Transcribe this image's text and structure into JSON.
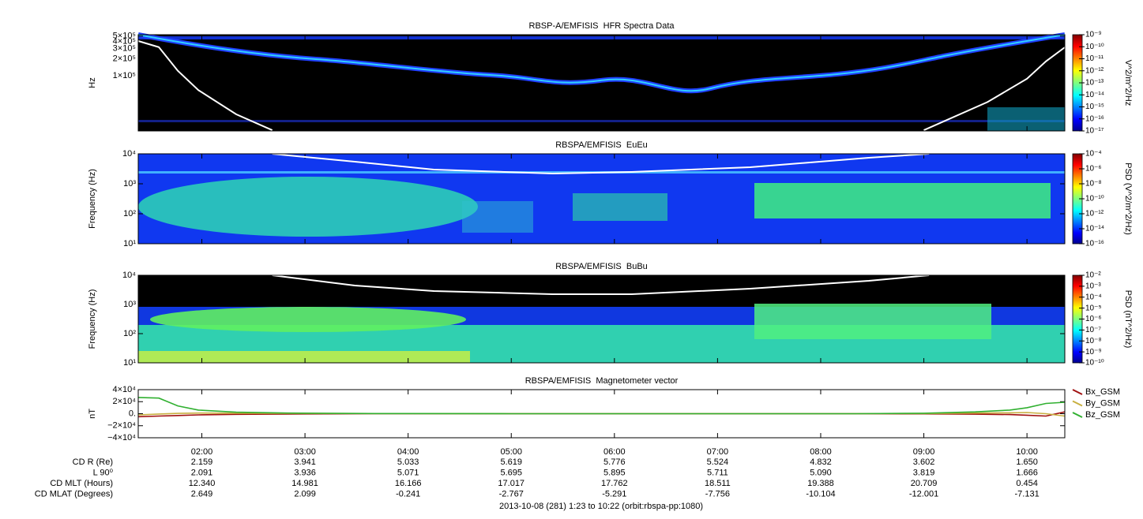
{
  "chart_data": [
    {
      "type": "spectrogram",
      "title": "RBSP-A/EMFISIS  HFR Spectra Data",
      "ylabel": "Hz",
      "yscale": "log",
      "ylim": [
        10700,
        530000
      ],
      "yticks": [
        {
          "value": 100000,
          "label": "1×10⁵"
        },
        {
          "value": 200000,
          "label": "2×10⁵"
        },
        {
          "value": 300000,
          "label": "3×10⁵"
        },
        {
          "value": 400000,
          "label": "4×10⁵"
        },
        {
          "value": 500000,
          "label": "5×10⁵"
        }
      ],
      "xlim": [
        83,
        622
      ],
      "xticks": [
        120,
        180,
        240,
        300,
        360,
        420,
        480,
        540,
        600
      ],
      "curve": {
        "color": "#ffffff",
        "x": [
          83,
          95,
          106,
          118,
          140,
          161,
          300,
          540,
          577,
          600,
          611,
          622
        ],
        "values": [
          410000,
          320000,
          123000,
          56000,
          21000,
          11000,
          null,
          11000,
          34500,
          89000,
          180000,
          318000
        ]
      },
      "colorbar": {
        "label": "V^2/m^2/Hz",
        "scale": "log",
        "lim": [
          1e-17,
          1e-09
        ],
        "ticks": [
          {
            "value": 1e-09,
            "label": "10⁻⁹"
          },
          {
            "value": 1e-10,
            "label": "10⁻¹⁰"
          },
          {
            "value": 1e-11,
            "label": "10⁻¹¹"
          },
          {
            "value": 1e-12,
            "label": "10⁻¹²"
          },
          {
            "value": 1e-13,
            "label": "10⁻¹³"
          },
          {
            "value": 1e-14,
            "label": "10⁻¹⁴"
          },
          {
            "value": 1e-15,
            "label": "10⁻¹⁵"
          },
          {
            "value": 1e-16,
            "label": "10⁻¹⁶"
          },
          {
            "value": 1e-17,
            "label": "10⁻¹⁷"
          }
        ]
      }
    },
    {
      "type": "spectrogram",
      "title": "RBSPA/EMFISIS  EuEu",
      "ylabel": "Frequency (Hz)",
      "yscale": "log",
      "ylim": [
        10,
        10000
      ],
      "yticks": [
        {
          "value": 10,
          "label": "10¹"
        },
        {
          "value": 100,
          "label": "10²"
        },
        {
          "value": 1000,
          "label": "10³"
        },
        {
          "value": 10000,
          "label": "10⁴"
        }
      ],
      "xlim": [
        83,
        622
      ],
      "xticks": [
        120,
        180,
        240,
        300,
        360,
        420,
        480,
        540,
        600
      ],
      "curve": {
        "color": "#ffffff",
        "x": [
          161,
          209,
          255,
          324,
          370,
          439,
          508,
          543
        ],
        "values": [
          10000,
          5470,
          2980,
          2200,
          2480,
          3570,
          7390,
          10000
        ]
      },
      "colorbar": {
        "label": "PSD (V^2/m^2/Hz)",
        "scale": "log",
        "lim": [
          1e-16,
          0.0001
        ],
        "ticks": [
          {
            "value": 0.0001,
            "label": "10⁻⁴"
          },
          {
            "value": 1e-06,
            "label": "10⁻⁶"
          },
          {
            "value": 1e-08,
            "label": "10⁻⁸"
          },
          {
            "value": 1e-10,
            "label": "10⁻¹⁰"
          },
          {
            "value": 1e-12,
            "label": "10⁻¹²"
          },
          {
            "value": 1e-14,
            "label": "10⁻¹⁴"
          },
          {
            "value": 1e-16,
            "label": "10⁻¹⁶"
          }
        ]
      }
    },
    {
      "type": "spectrogram",
      "title": "RBSPA/EMFISIS  BuBu",
      "ylabel": "Frequency (Hz)",
      "yscale": "log",
      "ylim": [
        10,
        10000
      ],
      "yticks": [
        {
          "value": 10,
          "label": "10¹"
        },
        {
          "value": 100,
          "label": "10²"
        },
        {
          "value": 1000,
          "label": "10³"
        },
        {
          "value": 10000,
          "label": "10⁴"
        }
      ],
      "xlim": [
        83,
        622
      ],
      "xticks": [
        120,
        180,
        240,
        300,
        360,
        420,
        480,
        540,
        600
      ],
      "curve": {
        "color": "#ffffff",
        "x": [
          161,
          209,
          255,
          324,
          370,
          439,
          508,
          543
        ],
        "values": [
          10000,
          4460,
          2880,
          2250,
          2250,
          3480,
          6460,
          10000
        ]
      },
      "colorbar": {
        "label": "PSD (nT^2/Hz)",
        "scale": "log",
        "lim": [
          1e-10,
          0.01
        ],
        "ticks": [
          {
            "value": 0.01,
            "label": "10⁻²"
          },
          {
            "value": 0.001,
            "label": "10⁻³"
          },
          {
            "value": 0.0001,
            "label": "10⁻⁴"
          },
          {
            "value": 1e-05,
            "label": "10⁻⁵"
          },
          {
            "value": 1e-06,
            "label": "10⁻⁶"
          },
          {
            "value": 1e-07,
            "label": "10⁻⁷"
          },
          {
            "value": 1e-08,
            "label": "10⁻⁸"
          },
          {
            "value": 1e-09,
            "label": "10⁻⁹"
          },
          {
            "value": 1e-10,
            "label": "10⁻¹⁰"
          }
        ]
      }
    },
    {
      "type": "line",
      "title": "RBSPA/EMFISIS  Magnetometer vector",
      "ylabel": "nT",
      "ylim": [
        -40000,
        40000
      ],
      "yticks": [
        {
          "value": 40000,
          "label": "4×10⁴"
        },
        {
          "value": 20000,
          "label": "2×10⁴"
        },
        {
          "value": 0,
          "label": "0."
        },
        {
          "value": -20000,
          "label": "−2×10⁴"
        },
        {
          "value": -40000,
          "label": "−4×10⁴"
        }
      ],
      "xlim": [
        83,
        622
      ],
      "xticks": [
        {
          "value": 120,
          "label": "02:00"
        },
        {
          "value": 180,
          "label": "03:00"
        },
        {
          "value": 240,
          "label": "04:00"
        },
        {
          "value": 300,
          "label": "05:00"
        },
        {
          "value": 360,
          "label": "06:00"
        },
        {
          "value": 420,
          "label": "07:00"
        },
        {
          "value": 480,
          "label": "08:00"
        },
        {
          "value": 540,
          "label": "09:00"
        },
        {
          "value": 600,
          "label": "10:00"
        }
      ],
      "x": [
        83,
        95,
        106,
        118,
        140,
        170,
        220,
        300,
        400,
        500,
        540,
        570,
        590,
        600,
        611,
        622
      ],
      "series": [
        {
          "name": "Bx_GSM",
          "color": "#a01010",
          "values": [
            -5000,
            -4000,
            -3000,
            -2000,
            -1000,
            -500,
            0,
            0,
            0,
            0,
            -300,
            -800,
            -1500,
            -2500,
            -4000,
            3000
          ]
        },
        {
          "name": "By_GSM",
          "color": "#c8b040",
          "values": [
            -2000,
            -500,
            500,
            1000,
            800,
            500,
            200,
            0,
            0,
            0,
            300,
            1000,
            1500,
            2000,
            0,
            -4000
          ]
        },
        {
          "name": "Bz_GSM",
          "color": "#30b030",
          "values": [
            27000,
            26000,
            13000,
            6000,
            2500,
            1000,
            300,
            0,
            0,
            0,
            800,
            3000,
            6000,
            10000,
            17000,
            19000
          ]
        }
      ]
    }
  ],
  "ephemeris": {
    "rows": [
      {
        "label": "CD R (Re)",
        "values": [
          "2.159",
          "3.941",
          "5.033",
          "5.619",
          "5.776",
          "5.524",
          "4.832",
          "3.602",
          "1.650"
        ]
      },
      {
        "label": "L 90⁰",
        "values": [
          "2.091",
          "3.936",
          "5.071",
          "5.695",
          "5.895",
          "5.711",
          "5.090",
          "3.819",
          "1.666"
        ]
      },
      {
        "label": "CD MLT (Hours)",
        "values": [
          "12.340",
          "14.981",
          "16.166",
          "17.017",
          "17.762",
          "18.511",
          "19.388",
          "20.709",
          "0.454"
        ]
      },
      {
        "label": "CD MLAT (Degrees)",
        "values": [
          "2.649",
          "2.099",
          "-0.241",
          "-2.767",
          "-5.291",
          "-7.756",
          "-10.104",
          "-12.001",
          "-7.131"
        ]
      }
    ]
  },
  "footer": "2013-10-08 (281) 1:23 to 10:22 (orbit:rbspa-pp:1080)"
}
